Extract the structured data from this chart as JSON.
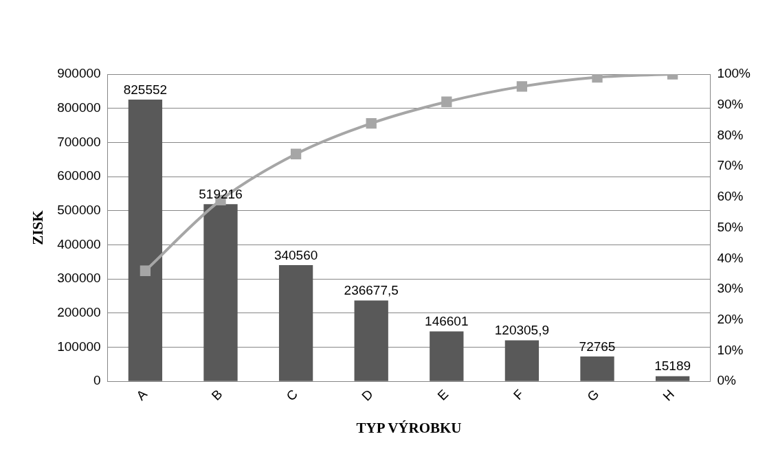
{
  "chart_data": {
    "type": "bar",
    "xlabel": "TYP VÝROBKU",
    "ylabel": "ZISK",
    "categories": [
      "A",
      "B",
      "C",
      "D",
      "E",
      "F",
      "G",
      "H"
    ],
    "series": [
      {
        "color": "#595959",
        "values": [
          825552,
          519216,
          340560,
          236677.5,
          146601,
          120305.9,
          72765,
          15189
        ],
        "value_labels": [
          "825552",
          "519216",
          "340560",
          "236677,5",
          "146601",
          "120305,9",
          "72765",
          "15189"
        ]
      },
      {
        "type": "line",
        "axis": "y2",
        "color": "#a6a6a6",
        "marker": "square",
        "values": [
          36,
          59,
          74,
          84,
          91,
          96,
          99,
          100
        ]
      }
    ],
    "ylim": [
      0,
      900000
    ],
    "yticks": [
      0,
      100000,
      200000,
      300000,
      400000,
      500000,
      600000,
      700000,
      800000,
      900000
    ],
    "y2lim": [
      0,
      100
    ],
    "y2ticks": [
      {
        "value": 0,
        "label": "0%"
      },
      {
        "value": 10,
        "label": "10%"
      },
      {
        "value": 20,
        "label": "20%"
      },
      {
        "value": 30,
        "label": "30%"
      },
      {
        "value": 40,
        "label": "40%"
      },
      {
        "value": 50,
        "label": "50%"
      },
      {
        "value": 60,
        "label": "60%"
      },
      {
        "value": 70,
        "label": "70%"
      },
      {
        "value": 80,
        "label": "80%"
      },
      {
        "value": 90,
        "label": "90%"
      },
      {
        "value": 100,
        "label": "100%"
      }
    ],
    "grid": "y",
    "legend": false
  }
}
